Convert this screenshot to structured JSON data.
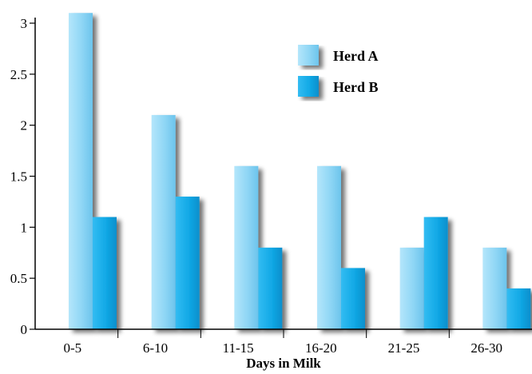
{
  "chart_data": {
    "type": "bar",
    "title": "",
    "xlabel": "Days in Milk",
    "ylabel": "",
    "categories": [
      "0-5",
      "6-10",
      "11-15",
      "16-20",
      "21-25",
      "26-30"
    ],
    "series": [
      {
        "name": "Herd A",
        "values": [
          3.1,
          2.1,
          1.6,
          1.6,
          0.8,
          0.8
        ],
        "color": "#8fd6f5"
      },
      {
        "name": "Herd B",
        "values": [
          1.1,
          1.3,
          0.8,
          0.6,
          1.1,
          0.4
        ],
        "color": "#12a9e6"
      }
    ],
    "ylim": [
      0,
      3
    ],
    "yticks": [
      "0",
      "0.5",
      "1",
      "1.5",
      "2",
      "2.5",
      "3"
    ],
    "grid": false,
    "legend": "top-right"
  }
}
